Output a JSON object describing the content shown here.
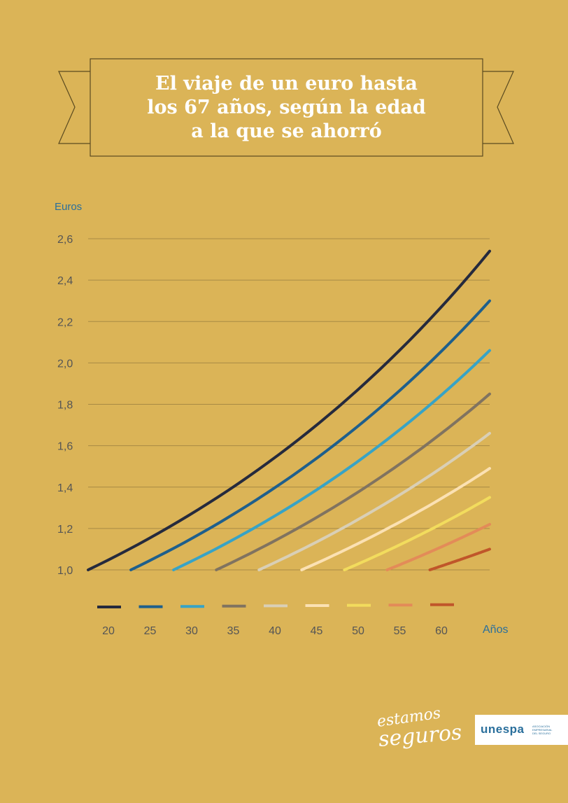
{
  "title": {
    "lines": [
      "El viaje de un euro hasta",
      "los 67 años, según la edad",
      "a la que se ahorró"
    ]
  },
  "colors": {
    "background": "#dbb457",
    "axis_label": "#2a6f9c",
    "tick_label": "#555555",
    "grid": "#a88a45"
  },
  "chart_data": {
    "type": "line",
    "ylabel": "Euros",
    "xlabel": "Años",
    "ylim": [
      1.0,
      2.6
    ],
    "yticks": [
      "1,0",
      "1,2",
      "1,4",
      "1,6",
      "1,8",
      "2,0",
      "2,2",
      "2,4",
      "2,6"
    ],
    "ytick_values": [
      1.0,
      1.2,
      1.4,
      1.6,
      1.8,
      2.0,
      2.2,
      2.4,
      2.6
    ],
    "grid": true,
    "legend_position": "bottom",
    "end_age": 67,
    "series": [
      {
        "name": "20",
        "color": "#252a3d",
        "start_age": 20,
        "start_value": 1.0,
        "end_value": 2.54
      },
      {
        "name": "25",
        "color": "#1e5f8c",
        "start_age": 25,
        "start_value": 1.0,
        "end_value": 2.3
      },
      {
        "name": "30",
        "color": "#37a3c6",
        "start_age": 30,
        "start_value": 1.0,
        "end_value": 2.06
      },
      {
        "name": "35",
        "color": "#807360",
        "start_age": 35,
        "start_value": 1.0,
        "end_value": 1.85
      },
      {
        "name": "40",
        "color": "#d9cfb6",
        "start_age": 40,
        "start_value": 1.0,
        "end_value": 1.66
      },
      {
        "name": "45",
        "color": "#fbe1b3",
        "start_age": 45,
        "start_value": 1.0,
        "end_value": 1.49
      },
      {
        "name": "50",
        "color": "#f2dc5d",
        "start_age": 50,
        "start_value": 1.0,
        "end_value": 1.35
      },
      {
        "name": "55",
        "color": "#e38b58",
        "start_age": 55,
        "start_value": 1.0,
        "end_value": 1.22
      },
      {
        "name": "60",
        "color": "#c0562a",
        "start_age": 60,
        "start_value": 1.0,
        "end_value": 1.1
      }
    ]
  },
  "logos": {
    "estamos_line1": "estamos",
    "estamos_line2": "seguros",
    "unespa_word": "unespa",
    "unespa_sub": [
      "ASOCIACIÓN",
      "EMPRESARIAL",
      "DEL SEGURO"
    ]
  }
}
